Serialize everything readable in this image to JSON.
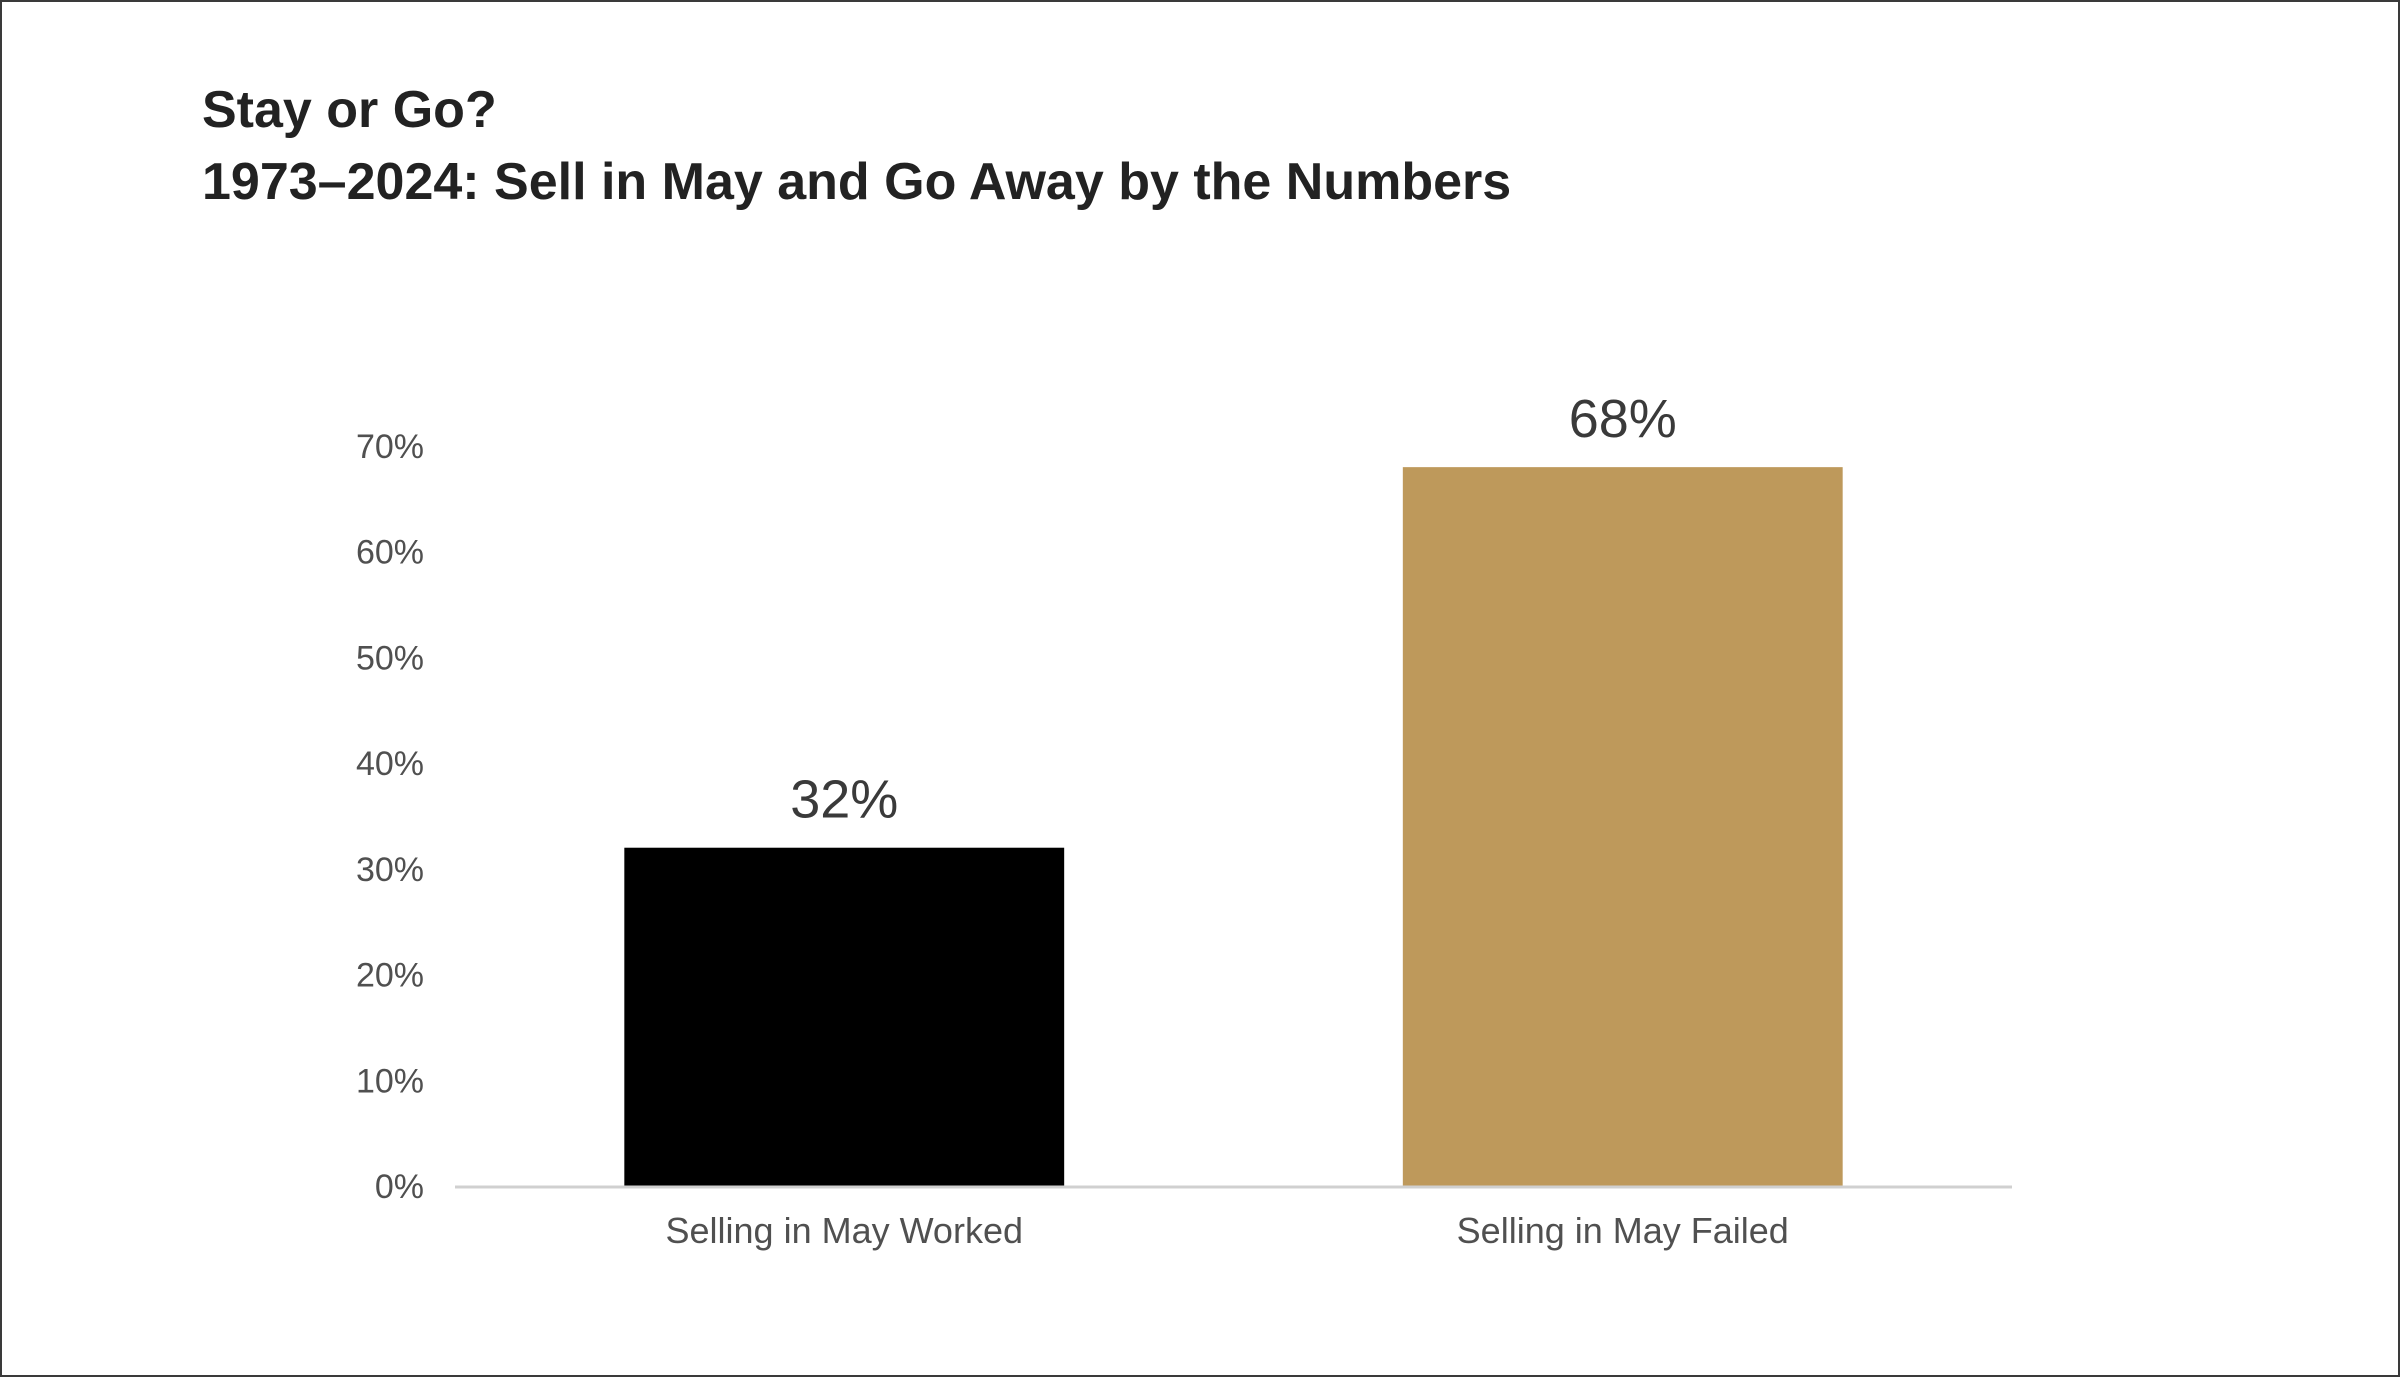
{
  "chart_data": {
    "type": "bar",
    "title": "Stay or Go?",
    "subtitle": "1973–2024: Sell in May and Go Away by the Numbers",
    "categories": [
      "Selling in May Worked",
      "Selling in May Failed"
    ],
    "values": [
      32,
      68
    ],
    "value_labels": [
      "32%",
      "68%"
    ],
    "bar_colors": [
      "#000000",
      "#BE995B"
    ],
    "ylim": [
      0,
      70
    ],
    "yticks": [
      0,
      10,
      20,
      30,
      40,
      50,
      60,
      70
    ],
    "ytick_labels": [
      "0%",
      "10%",
      "20%",
      "30%",
      "40%",
      "50%",
      "60%",
      "70%"
    ],
    "grid": false,
    "xlabel": "",
    "ylabel": ""
  }
}
